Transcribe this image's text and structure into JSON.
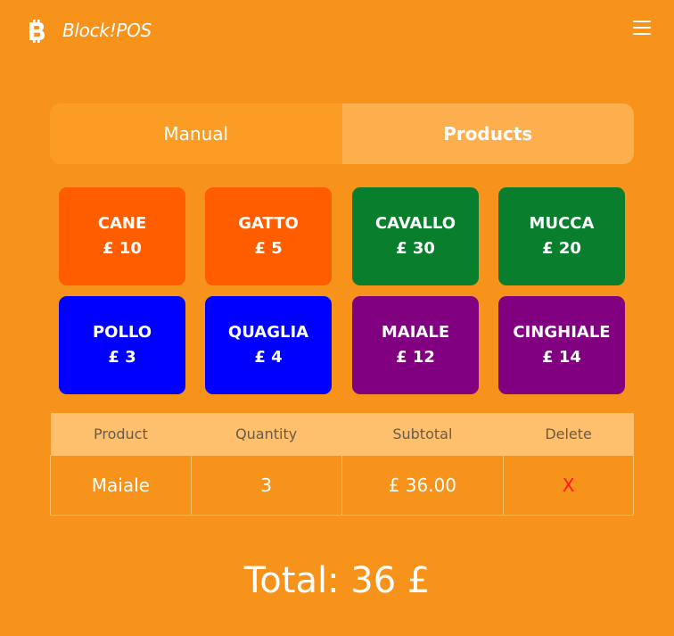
{
  "header": {
    "brand": "Block!POS",
    "logo_icon": "bitcoin-icon",
    "menu_icon": "hamburger-menu-icon"
  },
  "tabs": [
    {
      "label": "Manual",
      "active": false
    },
    {
      "label": "Products",
      "active": true
    }
  ],
  "products": [
    {
      "name": "CANE",
      "price": "£ 10",
      "color": "#FF5D00"
    },
    {
      "name": "GATTO",
      "price": "£ 5",
      "color": "#FF5D00"
    },
    {
      "name": "CAVALLO",
      "price": "£ 30",
      "color": "#097F2E"
    },
    {
      "name": "MUCCA",
      "price": "£ 20",
      "color": "#097F2E"
    },
    {
      "name": "POLLO",
      "price": "£ 3",
      "color": "#0000FF"
    },
    {
      "name": "QUAGLIA",
      "price": "£ 4",
      "color": "#0000FF"
    },
    {
      "name": "MAIALE",
      "price": "£ 12",
      "color": "#800080"
    },
    {
      "name": "CINGHIALE",
      "price": "£ 14",
      "color": "#800080"
    }
  ],
  "cart": {
    "headers": [
      "Product",
      "Quantity",
      "Subtotal",
      "Delete"
    ],
    "rows": [
      {
        "product": "Maiale",
        "quantity": "3",
        "subtotal": "£ 36.00",
        "delete": "X"
      }
    ]
  },
  "total": "Total: 36 £",
  "colors": {
    "background": "#F7931A",
    "tab_active": "#FDAE4D",
    "tab_inactive": "#FB9D24",
    "table_header": "#FFC06E",
    "delete": "#FF1A1A"
  }
}
